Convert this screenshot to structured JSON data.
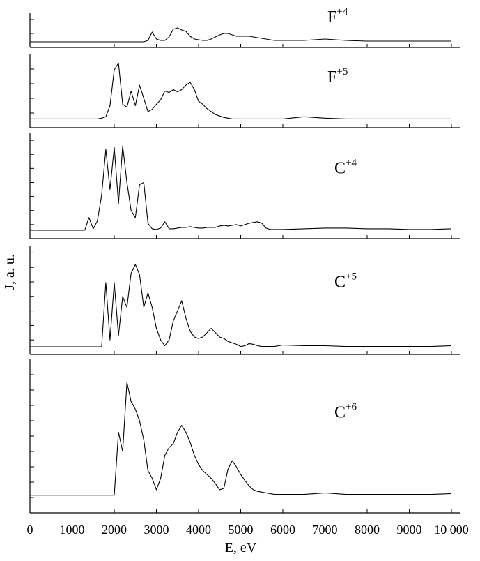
{
  "chart_data": [
    {
      "type": "line",
      "annotation": {
        "text": "F",
        "sup": "+4"
      },
      "color": "#000000",
      "xlim": [
        0,
        10000
      ],
      "ylim": [
        0,
        5
      ],
      "yticks": [
        2,
        4
      ],
      "x": [
        0,
        500,
        1000,
        1300,
        1400,
        1500,
        1600,
        1700,
        1800,
        1900,
        2000,
        2100,
        2200,
        2300,
        2400,
        2500,
        2600,
        2700,
        2800,
        2900,
        3000,
        3100,
        3200,
        3300,
        3400,
        3500,
        3600,
        3700,
        3800,
        3900,
        4000,
        4100,
        4200,
        4300,
        4400,
        4500,
        4600,
        4700,
        4800,
        4900,
        5000,
        5100,
        5200,
        5300,
        5400,
        5500,
        5600,
        5700,
        5800,
        5900,
        6000,
        6500,
        7000,
        7500,
        8000,
        8500,
        9000,
        9500,
        10000
      ],
      "values": [
        0.8,
        0.8,
        0.8,
        0.8,
        0.8,
        0.8,
        0.8,
        0.8,
        0.8,
        0.8,
        0.8,
        0.8,
        0.8,
        0.8,
        0.8,
        0.8,
        0.8,
        0.8,
        1.0,
        2.2,
        1.2,
        1.0,
        1.0,
        1.5,
        2.6,
        2.8,
        2.5,
        2.3,
        1.6,
        1.2,
        1.1,
        1.0,
        1.0,
        1.2,
        1.5,
        1.8,
        2.0,
        2.0,
        1.8,
        1.6,
        1.6,
        1.6,
        1.6,
        1.5,
        1.4,
        1.3,
        1.2,
        1.1,
        1.0,
        1.0,
        1.0,
        1.0,
        1.2,
        1.0,
        0.9,
        0.9,
        0.9,
        0.9,
        0.9
      ]
    },
    {
      "type": "line",
      "annotation": {
        "text": "F",
        "sup": "+5"
      },
      "color": "#000000",
      "xlim": [
        0,
        10000
      ],
      "ylim": [
        0,
        10
      ],
      "yticks": [
        2,
        4,
        6,
        8
      ],
      "x": [
        0,
        500,
        1000,
        1300,
        1400,
        1500,
        1600,
        1700,
        1800,
        1900,
        2000,
        2100,
        2200,
        2300,
        2400,
        2500,
        2600,
        2700,
        2800,
        2900,
        3000,
        3100,
        3200,
        3300,
        3400,
        3500,
        3600,
        3700,
        3800,
        3900,
        4000,
        4100,
        4200,
        4300,
        4400,
        4500,
        4600,
        4700,
        4800,
        4900,
        5000,
        5100,
        5200,
        5300,
        5400,
        5500,
        5600,
        5700,
        5800,
        5900,
        6000,
        6500,
        7000,
        7500,
        8000,
        8500,
        9000,
        9500,
        10000
      ],
      "values": [
        1.2,
        1.2,
        1.2,
        1.2,
        1.2,
        1.2,
        1.2,
        1.3,
        1.5,
        3.0,
        7.9,
        8.8,
        3.2,
        2.8,
        5.0,
        3.0,
        5.8,
        4.0,
        2.2,
        2.5,
        3.2,
        3.8,
        5.0,
        4.8,
        5.2,
        4.9,
        5.2,
        5.8,
        6.2,
        5.2,
        3.6,
        3.2,
        2.6,
        2.2,
        1.8,
        1.6,
        1.4,
        1.3,
        1.2,
        1.2,
        1.2,
        1.2,
        1.2,
        1.2,
        1.2,
        1.2,
        1.2,
        1.2,
        1.2,
        1.2,
        1.2,
        1.5,
        1.3,
        1.2,
        1.2,
        1.2,
        1.2,
        1.2,
        1.2
      ]
    },
    {
      "type": "line",
      "annotation": {
        "text": "C",
        "sup": "+4"
      },
      "color": "#000000",
      "xlim": [
        0,
        10000
      ],
      "ylim": [
        0,
        15
      ],
      "yticks": [
        2,
        4,
        6,
        8,
        10,
        12,
        14
      ],
      "x": [
        0,
        500,
        1000,
        1300,
        1400,
        1500,
        1600,
        1700,
        1800,
        1900,
        2000,
        2100,
        2200,
        2300,
        2400,
        2500,
        2600,
        2700,
        2800,
        2900,
        3000,
        3100,
        3200,
        3300,
        3400,
        3500,
        3600,
        3700,
        3800,
        3900,
        4000,
        4100,
        4200,
        4300,
        4400,
        4500,
        4600,
        4700,
        4800,
        4900,
        5000,
        5100,
        5200,
        5300,
        5400,
        5500,
        5600,
        5700,
        5800,
        5900,
        6000,
        6500,
        7000,
        7500,
        8000,
        8500,
        9000,
        9500,
        10000
      ],
      "values": [
        1.2,
        1.2,
        1.2,
        1.2,
        3.0,
        1.4,
        2.5,
        6.2,
        12.7,
        7.0,
        13.0,
        5.0,
        13.2,
        8.0,
        4.0,
        3.0,
        7.7,
        8.0,
        2.2,
        1.4,
        1.3,
        1.5,
        2.4,
        1.4,
        1.4,
        1.5,
        1.6,
        1.6,
        1.7,
        1.6,
        1.5,
        1.5,
        1.6,
        1.6,
        1.6,
        1.8,
        1.9,
        1.8,
        1.9,
        2.0,
        1.8,
        2.0,
        2.2,
        2.3,
        2.4,
        2.2,
        1.5,
        1.3,
        1.3,
        1.3,
        1.3,
        1.4,
        1.5,
        1.5,
        1.4,
        1.4,
        1.3,
        1.3,
        1.4
      ]
    },
    {
      "type": "line",
      "annotation": {
        "text": "C",
        "sup": "+5"
      },
      "color": "#000000",
      "ylabel": "J, a. u.",
      "xlim": [
        0,
        10000
      ],
      "ylim": [
        0,
        15
      ],
      "yticks": [
        2,
        4,
        6,
        8,
        10,
        12,
        14
      ],
      "x": [
        0,
        500,
        1000,
        1300,
        1400,
        1500,
        1600,
        1700,
        1800,
        1900,
        2000,
        2100,
        2200,
        2300,
        2400,
        2500,
        2600,
        2700,
        2800,
        2900,
        3000,
        3100,
        3200,
        3300,
        3400,
        3500,
        3600,
        3700,
        3800,
        3900,
        4000,
        4100,
        4200,
        4300,
        4400,
        4500,
        4600,
        4700,
        4800,
        4900,
        5000,
        5100,
        5200,
        5300,
        5400,
        5500,
        5600,
        5700,
        5800,
        5900,
        6000,
        6500,
        7000,
        7500,
        8000,
        8500,
        9000,
        9500,
        10000
      ],
      "values": [
        1.05,
        1.05,
        1.05,
        1.05,
        1.05,
        1.05,
        1.05,
        1.05,
        9.9,
        2.0,
        9.9,
        2.6,
        8.0,
        6.5,
        11.2,
        12.4,
        11.0,
        6.5,
        8.5,
        6.5,
        3.6,
        2.0,
        1.2,
        2.0,
        4.6,
        6.0,
        7.4,
        5.0,
        3.2,
        2.4,
        2.2,
        2.4,
        3.0,
        3.6,
        3.0,
        2.4,
        2.2,
        1.8,
        1.6,
        1.4,
        1.1,
        1.2,
        1.5,
        1.4,
        1.2,
        1.1,
        1.1,
        1.1,
        1.1,
        1.2,
        1.3,
        1.2,
        1.2,
        1.1,
        1.1,
        1.1,
        1.1,
        1.1,
        1.2
      ]
    },
    {
      "type": "line",
      "annotation": {
        "text": "C",
        "sup": "+6"
      },
      "color": "#000000",
      "xlabel": "E, eV",
      "xlim": [
        0,
        10000
      ],
      "ylim": [
        0,
        20
      ],
      "yticks": [
        2,
        4,
        6,
        8,
        10,
        12,
        14,
        16,
        18
      ],
      "xticks": [
        0,
        1000,
        2000,
        3000,
        4000,
        5000,
        6000,
        7000,
        8000,
        9000,
        {
          "value": 10000,
          "label": "10 000"
        }
      ],
      "x": [
        0,
        500,
        1000,
        1300,
        1400,
        1500,
        1600,
        1700,
        1800,
        1900,
        2000,
        2100,
        2200,
        2300,
        2400,
        2500,
        2600,
        2700,
        2800,
        2900,
        3000,
        3100,
        3200,
        3300,
        3400,
        3500,
        3600,
        3700,
        3800,
        3900,
        4000,
        4100,
        4200,
        4300,
        4400,
        4500,
        4600,
        4700,
        4800,
        4900,
        5000,
        5100,
        5200,
        5300,
        5400,
        5500,
        5600,
        5700,
        5800,
        5900,
        6000,
        6500,
        7000,
        7500,
        8000,
        8500,
        9000,
        9500,
        10000
      ],
      "values": [
        2.3,
        2.3,
        2.3,
        2.3,
        2.3,
        2.3,
        2.3,
        2.3,
        2.3,
        2.3,
        2.3,
        10.5,
        8.0,
        17.0,
        14.5,
        13.5,
        12.0,
        9.5,
        5.5,
        4.5,
        3.0,
        4.5,
        7.5,
        8.5,
        9.0,
        10.5,
        11.4,
        10.5,
        9.2,
        7.5,
        6.3,
        5.5,
        5.0,
        4.5,
        3.8,
        3.0,
        3.2,
        5.7,
        6.8,
        6.0,
        5.0,
        4.2,
        3.5,
        3.0,
        2.8,
        2.7,
        2.6,
        2.5,
        2.4,
        2.4,
        2.4,
        2.4,
        2.6,
        2.4,
        2.4,
        2.4,
        2.4,
        2.4,
        2.5
      ]
    }
  ]
}
